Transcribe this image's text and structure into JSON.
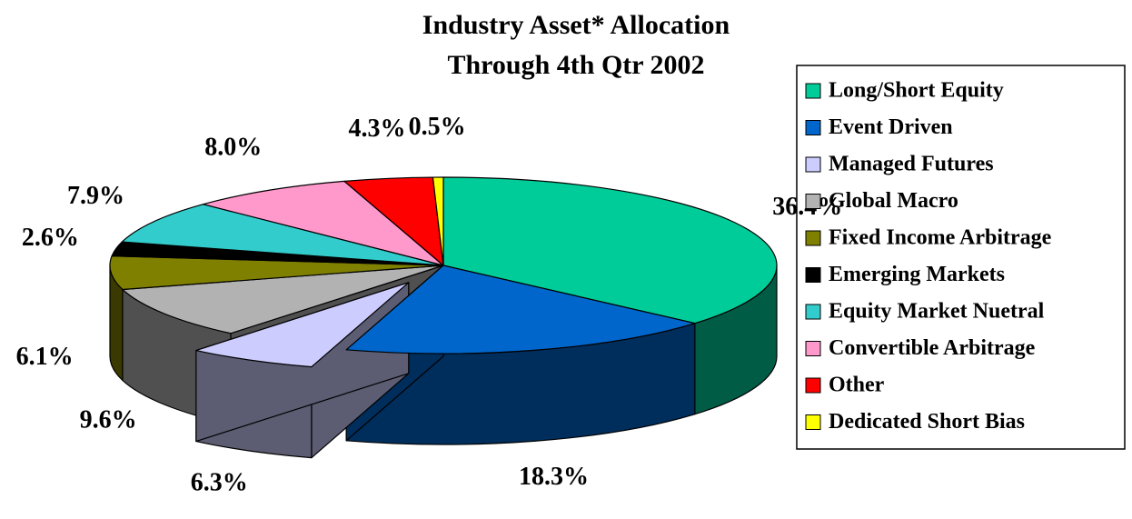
{
  "chart_data": {
    "type": "pie3d",
    "title": [
      "Industry Asset* Allocation",
      "Through 4th Qtr 2002"
    ],
    "categories": [
      "Long/Short Equity",
      "Event Driven",
      "Managed Futures",
      "Global Macro",
      "Fixed Income Arbitrage",
      "Emerging Markets",
      "Equity Market Nuetral",
      "Convertible Arbitrage",
      "Other",
      "Dedicated Short Bias"
    ],
    "values": [
      36.4,
      18.3,
      6.3,
      9.6,
      6.1,
      2.6,
      7.9,
      8.0,
      4.3,
      0.5
    ],
    "value_labels": [
      "36.4%",
      "18.3%",
      "6.3%",
      "9.6%",
      "6.1%",
      "2.6%",
      "7.9%",
      "8.0%",
      "4.3%",
      "0.5%"
    ],
    "colors": [
      "#00cc99",
      "#0066cc",
      "#ccccff",
      "#b2b2b2",
      "#808000",
      "#000000",
      "#33cccc",
      "#ff99cc",
      "#ff0000",
      "#ffff00"
    ],
    "exploded": [
      2
    ],
    "legend": "right"
  }
}
